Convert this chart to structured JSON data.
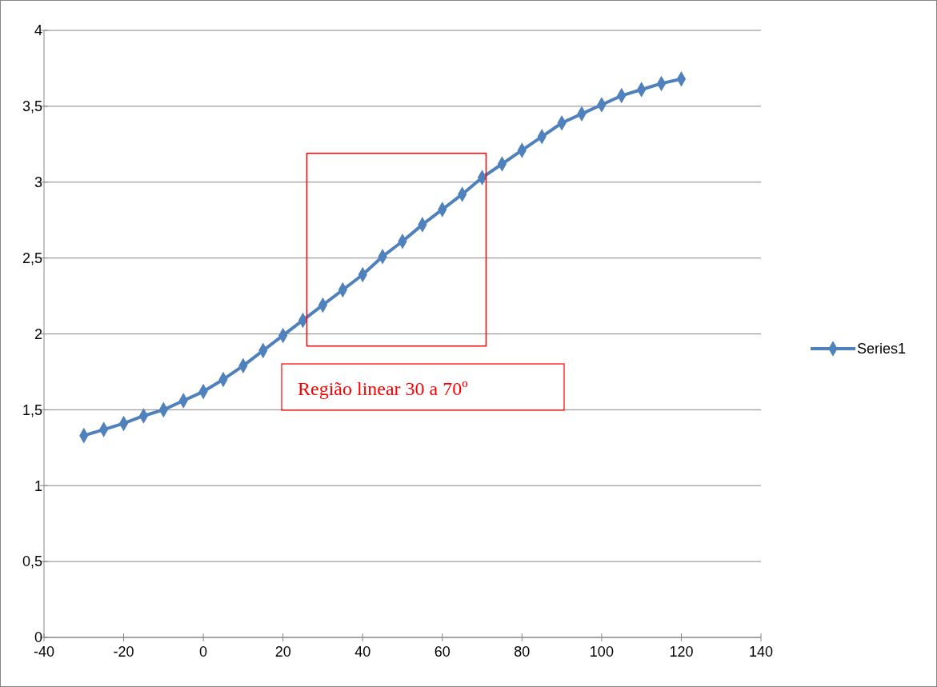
{
  "chart_data": {
    "type": "line",
    "x": [
      -30,
      -25,
      -20,
      -15,
      -10,
      -5,
      0,
      5,
      10,
      15,
      20,
      25,
      30,
      35,
      40,
      45,
      50,
      55,
      60,
      65,
      70,
      75,
      80,
      85,
      90,
      95,
      100,
      105,
      110,
      115,
      120
    ],
    "series": [
      {
        "name": "Series1",
        "color": "#4f81bd",
        "values": [
          1.33,
          1.37,
          1.41,
          1.46,
          1.5,
          1.56,
          1.62,
          1.7,
          1.79,
          1.89,
          1.99,
          2.09,
          2.19,
          2.29,
          2.39,
          2.51,
          2.61,
          2.72,
          2.82,
          2.92,
          3.03,
          3.12,
          3.21,
          3.3,
          3.39,
          3.45,
          3.51,
          3.57,
          3.61,
          3.65,
          3.68
        ]
      }
    ],
    "xlim": [
      -40,
      140
    ],
    "xticks": [
      -40,
      -20,
      0,
      20,
      40,
      60,
      80,
      100,
      120,
      140
    ],
    "ylim": [
      0,
      4
    ],
    "yticks": [
      0,
      {
        "value": 0.5,
        "label": "0,5"
      },
      1,
      {
        "value": 1.5,
        "label": "1,5"
      },
      2,
      {
        "value": 2.5,
        "label": "2,5"
      },
      3,
      {
        "value": 3.5,
        "label": "3,5"
      },
      4
    ],
    "grid": "y",
    "legend": "right",
    "marker": "diamond",
    "line_style": "solid",
    "annotations": [
      "Região linear 30 a 70º"
    ]
  }
}
